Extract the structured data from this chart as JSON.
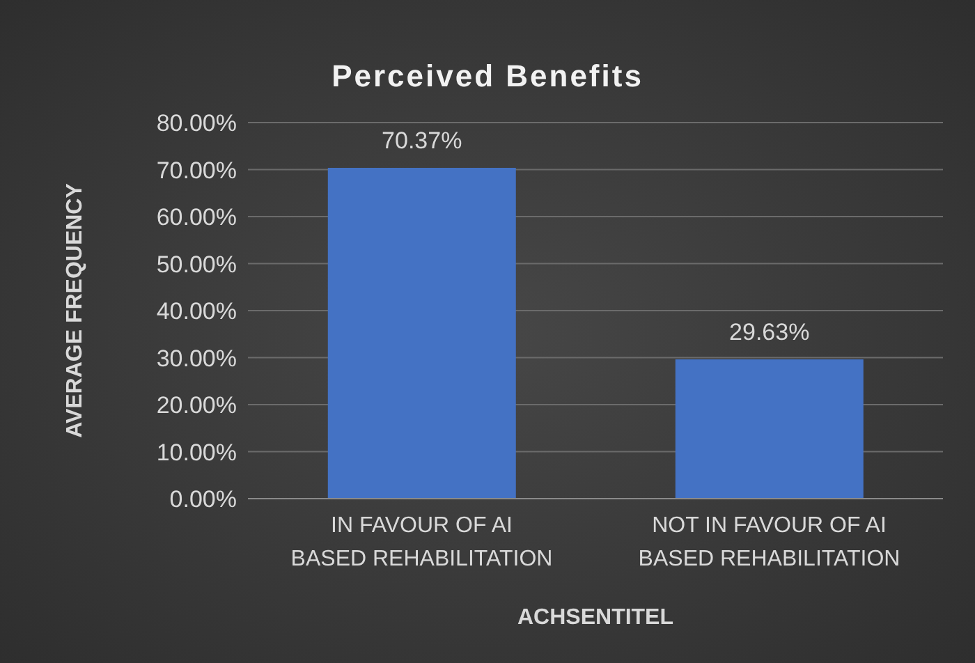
{
  "chart_data": {
    "type": "bar",
    "title": "Perceived Benefits",
    "xlabel": "ACHSENTITEL",
    "ylabel": "AVERAGE FREQUENCY",
    "categories": [
      "IN FAVOUR OF AI BASED REHABILITATION",
      "NOT IN FAVOUR OF AI BASED REHABILITATION"
    ],
    "values": [
      70.37,
      29.63
    ],
    "value_labels": [
      "70.37%",
      "29.63%"
    ],
    "color": "#4472c4",
    "ylim": [
      0,
      80
    ],
    "yticks": [
      {
        "value": 0,
        "label": "0.00%"
      },
      {
        "value": 10,
        "label": "10.00%"
      },
      {
        "value": 20,
        "label": "20.00%"
      },
      {
        "value": 30,
        "label": "30.00%"
      },
      {
        "value": 40,
        "label": "40.00%"
      },
      {
        "value": 50,
        "label": "50.00%"
      },
      {
        "value": 60,
        "label": "60.00%"
      },
      {
        "value": 70,
        "label": "70.00%"
      },
      {
        "value": 80,
        "label": "80.00%"
      }
    ],
    "grid": "y"
  }
}
